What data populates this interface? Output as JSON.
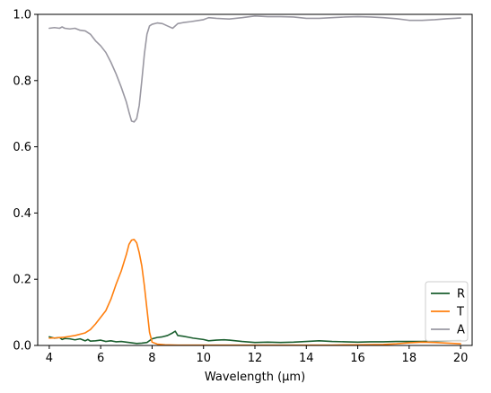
{
  "chart_data": {
    "type": "line",
    "title": "",
    "xlabel": "Wavelength (μm)",
    "ylabel": "",
    "xlim": [
      3.55,
      20.45
    ],
    "ylim": [
      0,
      1
    ],
    "xticks": [
      4,
      6,
      8,
      10,
      12,
      14,
      16,
      18,
      20
    ],
    "xtick_labels": [
      "4",
      "6",
      "8",
      "10",
      "12",
      "14",
      "16",
      "18",
      "20"
    ],
    "yticks": [
      0,
      0.2,
      0.4,
      0.6,
      0.8,
      1.0
    ],
    "ytick_labels": [
      "0.0",
      "0.2",
      "0.4",
      "0.6",
      "0.8",
      "1.0"
    ],
    "grid": false,
    "legend_position": "lower-right",
    "series": [
      {
        "name": "R",
        "color": "#1a5e2e",
        "x": [
          4.0,
          4.2,
          4.4,
          4.5,
          4.6,
          4.8,
          5.0,
          5.2,
          5.4,
          5.5,
          5.6,
          5.8,
          6.0,
          6.2,
          6.4,
          6.6,
          6.8,
          7.0,
          7.2,
          7.4,
          7.6,
          7.8,
          8.0,
          8.2,
          8.4,
          8.6,
          8.8,
          8.9,
          9.0,
          9.2,
          9.4,
          9.6,
          9.8,
          10.0,
          10.2,
          10.5,
          10.8,
          11.0,
          11.5,
          12.0,
          12.5,
          13.0,
          13.5,
          14.0,
          14.5,
          15.0,
          15.5,
          16.0,
          16.5,
          17.0,
          17.5,
          18.0,
          18.5,
          19.0,
          19.5,
          20.0
        ],
        "y": [
          0.026,
          0.022,
          0.024,
          0.018,
          0.021,
          0.02,
          0.017,
          0.02,
          0.014,
          0.018,
          0.013,
          0.014,
          0.016,
          0.012,
          0.014,
          0.011,
          0.012,
          0.01,
          0.008,
          0.006,
          0.007,
          0.009,
          0.02,
          0.024,
          0.026,
          0.03,
          0.038,
          0.043,
          0.03,
          0.028,
          0.025,
          0.022,
          0.02,
          0.018,
          0.014,
          0.016,
          0.017,
          0.016,
          0.012,
          0.009,
          0.01,
          0.009,
          0.01,
          0.012,
          0.014,
          0.012,
          0.011,
          0.01,
          0.011,
          0.011,
          0.012,
          0.012,
          0.012,
          0.013,
          0.014,
          0.015
        ]
      },
      {
        "name": "T",
        "color": "#ff7f0e",
        "x": [
          4.0,
          4.3,
          4.6,
          5.0,
          5.4,
          5.6,
          5.8,
          6.0,
          6.2,
          6.4,
          6.6,
          6.8,
          7.0,
          7.1,
          7.2,
          7.3,
          7.4,
          7.5,
          7.6,
          7.7,
          7.8,
          7.9,
          8.0,
          8.2,
          8.5,
          9.0,
          10.0,
          11.0,
          12.0,
          13.0,
          14.0,
          15.0,
          16.0,
          17.0,
          17.5,
          18.0,
          18.5,
          19.0,
          19.5,
          20.0
        ],
        "y": [
          0.022,
          0.023,
          0.025,
          0.03,
          0.038,
          0.048,
          0.065,
          0.085,
          0.105,
          0.14,
          0.185,
          0.225,
          0.275,
          0.305,
          0.318,
          0.32,
          0.31,
          0.28,
          0.24,
          0.18,
          0.11,
          0.04,
          0.01,
          0.004,
          0.002,
          0.001,
          0.001,
          0.001,
          0.001,
          0.001,
          0.001,
          0.001,
          0.002,
          0.003,
          0.005,
          0.008,
          0.01,
          0.009,
          0.007,
          0.005
        ]
      },
      {
        "name": "A",
        "color": "#9a98a2",
        "x": [
          4.0,
          4.2,
          4.4,
          4.5,
          4.6,
          4.8,
          5.0,
          5.2,
          5.4,
          5.6,
          5.8,
          6.0,
          6.2,
          6.4,
          6.6,
          6.8,
          7.0,
          7.1,
          7.2,
          7.3,
          7.4,
          7.5,
          7.6,
          7.7,
          7.8,
          7.9,
          8.0,
          8.2,
          8.4,
          8.6,
          8.8,
          9.0,
          9.2,
          9.5,
          10.0,
          10.2,
          10.5,
          11.0,
          11.5,
          12.0,
          12.5,
          13.0,
          13.5,
          14.0,
          14.5,
          15.0,
          15.5,
          16.0,
          16.5,
          17.0,
          17.5,
          18.0,
          18.5,
          19.0,
          19.5,
          20.0
        ],
        "y": [
          0.958,
          0.96,
          0.958,
          0.962,
          0.958,
          0.956,
          0.958,
          0.952,
          0.95,
          0.94,
          0.92,
          0.905,
          0.885,
          0.855,
          0.82,
          0.78,
          0.735,
          0.705,
          0.678,
          0.675,
          0.685,
          0.725,
          0.8,
          0.88,
          0.94,
          0.965,
          0.97,
          0.974,
          0.972,
          0.965,
          0.958,
          0.972,
          0.975,
          0.978,
          0.984,
          0.99,
          0.988,
          0.986,
          0.99,
          0.995,
          0.993,
          0.993,
          0.992,
          0.988,
          0.988,
          0.99,
          0.992,
          0.993,
          0.992,
          0.99,
          0.987,
          0.982,
          0.982,
          0.984,
          0.987,
          0.989
        ]
      }
    ]
  }
}
